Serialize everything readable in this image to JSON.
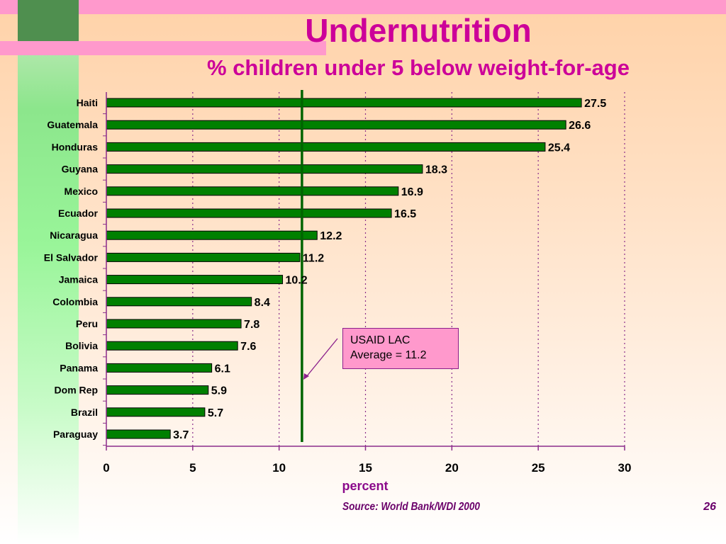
{
  "slide": {
    "title": "Undernutrition",
    "subtitle": "% children under 5 below weight-for-age",
    "source": "Source: World Bank/WDI 2000",
    "page_number": "26",
    "callout_line1": "USAID LAC",
    "callout_line2": "Average = 11.2"
  },
  "colors": {
    "bar_fill": "#008000",
    "axis": "#8b2d8b",
    "gridline": "#8b2d8b",
    "average_line": "#006400",
    "title": "#cc0099"
  },
  "chart_data": {
    "type": "bar",
    "orientation": "horizontal",
    "categories": [
      "Haiti",
      "Guatemala",
      "Honduras",
      "Guyana",
      "Mexico",
      "Ecuador",
      "Nicaragua",
      "El Salvador",
      "Jamaica",
      "Colombia",
      "Peru",
      "Bolivia",
      "Panama",
      "Dom Rep",
      "Brazil",
      "Paraguay"
    ],
    "values": [
      27.5,
      26.6,
      25.4,
      18.3,
      16.9,
      16.5,
      12.2,
      11.2,
      10.2,
      8.4,
      7.8,
      7.6,
      6.1,
      5.9,
      5.7,
      3.7
    ],
    "data_labels": [
      "27.5",
      "26.6",
      "25.4",
      "18.3",
      "16.9",
      "16.5",
      "12.2",
      "11.2",
      "10.2",
      "8.4",
      "7.8",
      "7.6",
      "6.1",
      "5.9",
      "5.7",
      "3.7"
    ],
    "xlabel": "percent",
    "xlim": [
      0,
      30
    ],
    "xticks": [
      0,
      5,
      10,
      15,
      20,
      25,
      30
    ],
    "xtick_labels": [
      "0",
      "5",
      "10",
      "15",
      "20",
      "25",
      "30"
    ],
    "grid": "vertical dotted",
    "reference_line": {
      "value": 11.2
    }
  }
}
